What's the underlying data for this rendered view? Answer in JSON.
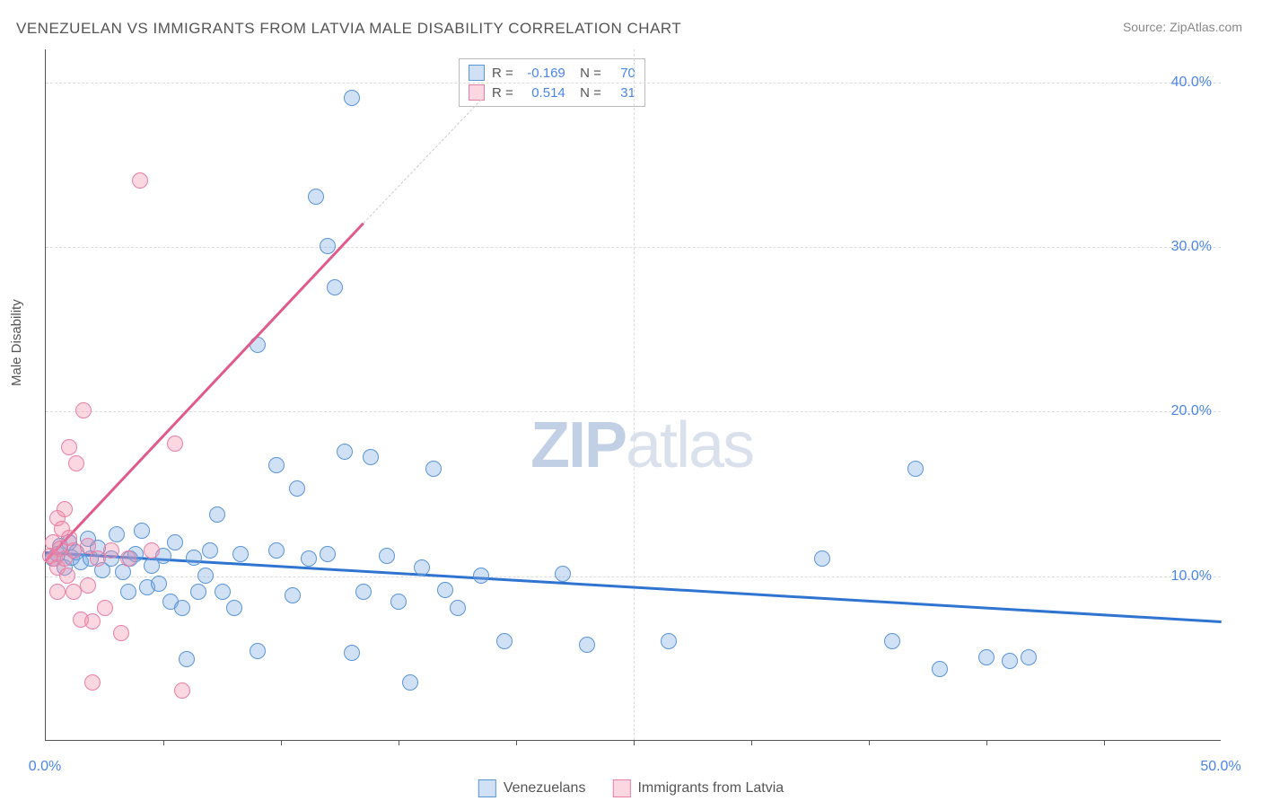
{
  "title": "VENEZUELAN VS IMMIGRANTS FROM LATVIA MALE DISABILITY CORRELATION CHART",
  "source": "Source: ZipAtlas.com",
  "ylabel": "Male Disability",
  "watermark_a": "ZIP",
  "watermark_b": "atlas",
  "chart": {
    "type": "scatter",
    "xlim": [
      0,
      50
    ],
    "ylim": [
      0,
      42
    ],
    "x_ticks": [
      0,
      50
    ],
    "x_tick_labels": [
      "0.0%",
      "50.0%"
    ],
    "x_minor_ticks": [
      5,
      10,
      15,
      20,
      25,
      30,
      35,
      40,
      45
    ],
    "y_ticks": [
      10,
      20,
      30,
      40
    ],
    "y_tick_labels": [
      "10.0%",
      "20.0%",
      "30.0%",
      "40.0%"
    ],
    "gridline_color": "#dddddd",
    "background_color": "#ffffff",
    "axis_color": "#555555"
  },
  "series": [
    {
      "name": "Venezuelans",
      "fill_color": "rgba(120,170,230,0.35)",
      "stroke_color": "#5a95d8",
      "marker_radius": 9,
      "trend": {
        "x1": 0,
        "y1": 11.5,
        "x2": 50,
        "y2": 7.3,
        "color": "#2f74d0",
        "width": 2.5
      },
      "R_label": "-0.169",
      "N_label": "70",
      "points": [
        [
          0.3,
          11.0
        ],
        [
          0.5,
          11.3
        ],
        [
          0.6,
          11.8
        ],
        [
          0.8,
          10.5
        ],
        [
          1.0,
          12.0
        ],
        [
          1.1,
          11.1
        ],
        [
          1.3,
          11.4
        ],
        [
          1.5,
          10.8
        ],
        [
          1.8,
          12.2
        ],
        [
          1.9,
          11.0
        ],
        [
          2.2,
          11.7
        ],
        [
          2.4,
          10.3
        ],
        [
          2.8,
          11.0
        ],
        [
          3.0,
          12.5
        ],
        [
          3.3,
          10.2
        ],
        [
          3.5,
          9.0
        ],
        [
          3.6,
          11.0
        ],
        [
          3.8,
          11.3
        ],
        [
          4.1,
          12.7
        ],
        [
          4.3,
          9.3
        ],
        [
          4.5,
          10.6
        ],
        [
          4.8,
          9.5
        ],
        [
          5.0,
          11.2
        ],
        [
          5.3,
          8.4
        ],
        [
          5.5,
          12.0
        ],
        [
          5.8,
          8.0
        ],
        [
          6.0,
          4.9
        ],
        [
          6.3,
          11.1
        ],
        [
          6.5,
          9.0
        ],
        [
          6.8,
          10.0
        ],
        [
          7.0,
          11.5
        ],
        [
          7.3,
          13.7
        ],
        [
          7.5,
          9.0
        ],
        [
          8.0,
          8.0
        ],
        [
          8.3,
          11.3
        ],
        [
          9.0,
          5.4
        ],
        [
          9.0,
          24.0
        ],
        [
          9.8,
          16.7
        ],
        [
          9.8,
          11.5
        ],
        [
          10.5,
          8.8
        ],
        [
          10.7,
          15.3
        ],
        [
          11.2,
          11.0
        ],
        [
          11.5,
          33.0
        ],
        [
          12.0,
          30.0
        ],
        [
          12.3,
          27.5
        ],
        [
          12.7,
          17.5
        ],
        [
          13.0,
          5.3
        ],
        [
          13.5,
          9.0
        ],
        [
          13.8,
          17.2
        ],
        [
          14.5,
          11.2
        ],
        [
          15.0,
          8.4
        ],
        [
          15.5,
          3.5
        ],
        [
          16.0,
          10.5
        ],
        [
          16.5,
          16.5
        ],
        [
          17.0,
          9.1
        ],
        [
          17.5,
          8.0
        ],
        [
          18.5,
          10.0
        ],
        [
          19.5,
          6.0
        ],
        [
          22.0,
          10.1
        ],
        [
          23.0,
          5.8
        ],
        [
          26.5,
          6.0
        ],
        [
          33.0,
          11.0
        ],
        [
          36.0,
          6.0
        ],
        [
          37.0,
          16.5
        ],
        [
          38.0,
          4.3
        ],
        [
          40.0,
          5.0
        ],
        [
          41.0,
          4.8
        ],
        [
          41.8,
          5.0
        ],
        [
          13.0,
          39.0
        ],
        [
          12.0,
          11.3
        ]
      ]
    },
    {
      "name": "Immigrants from Latvia",
      "fill_color": "rgba(240,140,170,0.35)",
      "stroke_color": "#e97fa5",
      "marker_radius": 9,
      "trend": {
        "x1": 0,
        "y1": 11.0,
        "x2": 13.5,
        "y2": 31.5,
        "color": "#e05a8c",
        "width": 2.5
      },
      "trend_dash": {
        "x1": 13.5,
        "y1": 31.5,
        "x2": 18.5,
        "y2": 39.0,
        "color": "#cccccc"
      },
      "R_label": "0.514",
      "N_label": "31",
      "points": [
        [
          0.2,
          11.2
        ],
        [
          0.3,
          12.0
        ],
        [
          0.4,
          11.0
        ],
        [
          0.5,
          10.5
        ],
        [
          0.5,
          13.5
        ],
        [
          0.6,
          11.6
        ],
        [
          0.7,
          12.8
        ],
        [
          0.8,
          11.0
        ],
        [
          0.8,
          14.0
        ],
        [
          0.9,
          10.0
        ],
        [
          1.0,
          12.3
        ],
        [
          1.0,
          17.8
        ],
        [
          1.2,
          11.5
        ],
        [
          1.2,
          9.0
        ],
        [
          1.3,
          16.8
        ],
        [
          1.5,
          7.3
        ],
        [
          1.6,
          20.0
        ],
        [
          1.8,
          9.4
        ],
        [
          1.8,
          11.8
        ],
        [
          2.0,
          7.2
        ],
        [
          2.2,
          11.0
        ],
        [
          2.5,
          8.0
        ],
        [
          2.8,
          11.5
        ],
        [
          3.2,
          6.5
        ],
        [
          3.5,
          11.0
        ],
        [
          4.0,
          34.0
        ],
        [
          4.5,
          11.5
        ],
        [
          5.5,
          18.0
        ],
        [
          5.8,
          3.0
        ],
        [
          2.0,
          3.5
        ],
        [
          0.5,
          9.0
        ]
      ]
    }
  ],
  "legend": {
    "series1_label": "Venezuelans",
    "series2_label": "Immigrants from Latvia"
  }
}
